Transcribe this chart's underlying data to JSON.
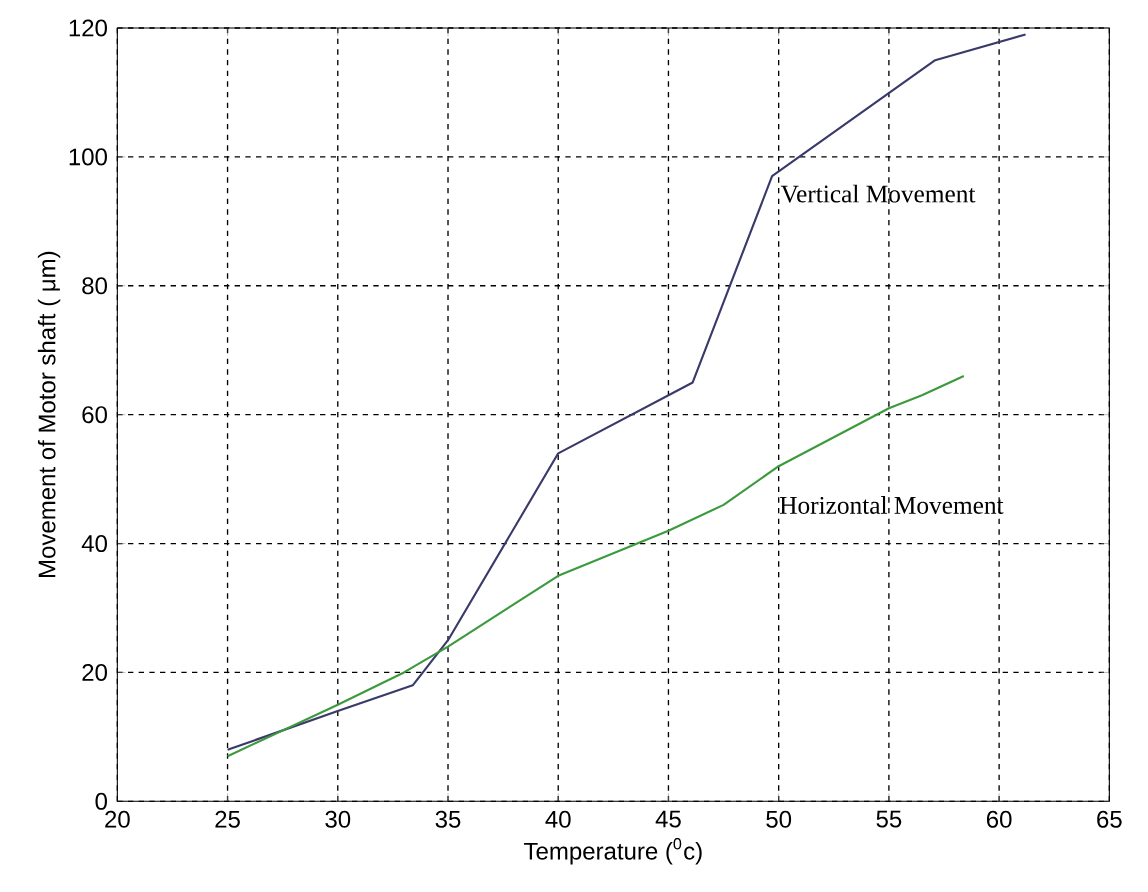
{
  "chart_data": {
    "type": "line",
    "xlabel": "Temperature ($^{0}$c)",
    "ylabel": "Movement of Motor shaft ( μm)",
    "xlim": [
      20,
      65
    ],
    "xticks": [
      20,
      25,
      30,
      35,
      40,
      45,
      50,
      55,
      60,
      65
    ],
    "ylim": [
      0,
      120
    ],
    "yticks": [
      0,
      20,
      40,
      60,
      80,
      100,
      120
    ],
    "grid": true,
    "line_style": "solid",
    "marker": "none",
    "series": [
      {
        "name": "Vertical Movement",
        "color": "#3a3a6a",
        "x": [
          25,
          30,
          33.4,
          35,
          40,
          46.1,
          49.7,
          57.1,
          61.2
        ],
        "values": [
          8,
          14,
          18,
          25,
          54,
          65,
          97,
          115,
          119
        ]
      },
      {
        "name": "Horizontal Movement",
        "color": "#3c9a3c",
        "x": [
          25,
          30,
          33,
          35,
          40,
          45,
          47.5,
          50,
          55,
          56.5,
          58.4
        ],
        "values": [
          7,
          15,
          20,
          24,
          35,
          42,
          46,
          52,
          61,
          63,
          66
        ]
      }
    ]
  }
}
